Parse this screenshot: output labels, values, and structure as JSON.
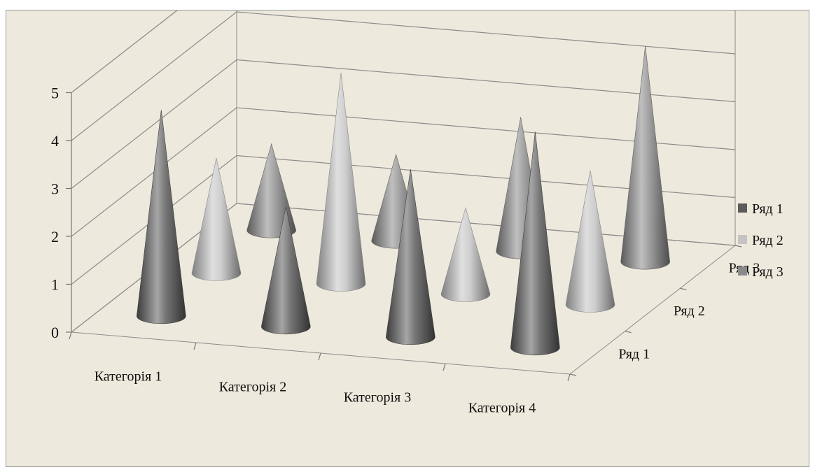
{
  "chart_data": {
    "type": "3d-cone-column",
    "categories": [
      "Категорія 1",
      "Категорія 2",
      "Категорія 3",
      "Категорія 4"
    ],
    "series": [
      {
        "name": "Ряд 1",
        "values": [
          4.3,
          2.5,
          3.5,
          4.5
        ],
        "color": "#5b5b5b"
      },
      {
        "name": "Ряд 2",
        "values": [
          2.4,
          4.4,
          1.8,
          2.8
        ],
        "color": "#c4c4c4"
      },
      {
        "name": "Ряд 3",
        "values": [
          1.8,
          1.8,
          2.8,
          4.5
        ],
        "color": "#8a8a8a"
      }
    ],
    "y_ticks": [
      "0",
      "1",
      "2",
      "3",
      "4",
      "5"
    ],
    "ylim": [
      0,
      5
    ],
    "depth_labels": [
      "Ряд 1",
      "Ряд 2",
      "Ряд 3"
    ],
    "grid": true,
    "legend": "right"
  }
}
